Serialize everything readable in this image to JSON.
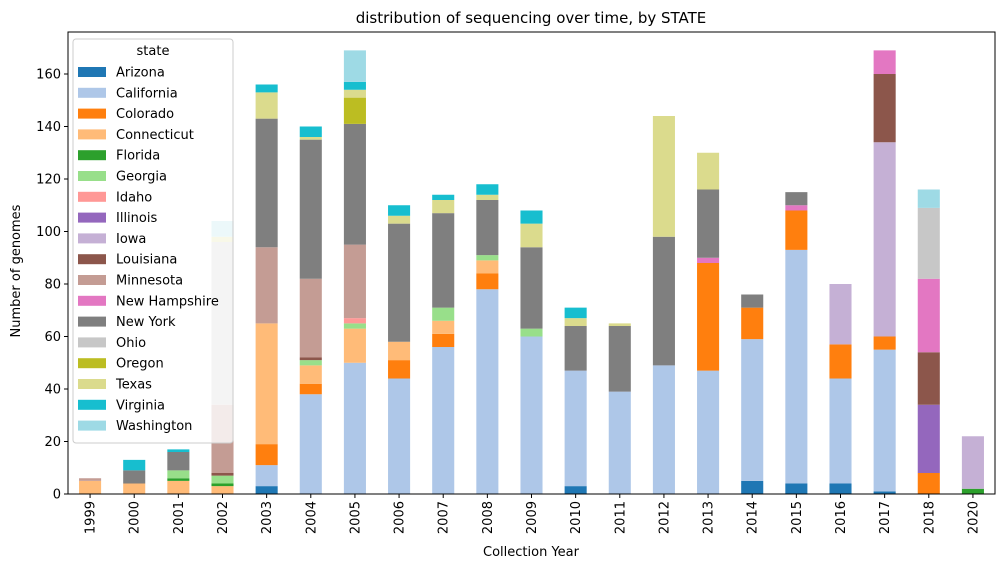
{
  "chart_data": {
    "type": "bar",
    "stacked": true,
    "title": "distribution of sequencing over time, by STATE",
    "xlabel": "Collection Year",
    "ylabel": "Number of genomes",
    "ylim": [
      0,
      176
    ],
    "yticks": [
      0,
      20,
      40,
      60,
      80,
      100,
      120,
      140,
      160
    ],
    "grid": false,
    "legend": {
      "title": "state",
      "placement": "top-left"
    },
    "categories": [
      "1999",
      "2000",
      "2001",
      "2002",
      "2003",
      "2004",
      "2005",
      "2006",
      "2007",
      "2008",
      "2009",
      "2010",
      "2011",
      "2012",
      "2013",
      "2014",
      "2015",
      "2016",
      "2017",
      "2018",
      "2020"
    ],
    "series": [
      {
        "name": "Arizona",
        "color": "#1f77b4",
        "values": [
          0,
          0,
          0,
          0,
          3,
          0,
          0,
          0,
          0,
          0,
          0,
          3,
          0,
          0,
          0,
          5,
          4,
          4,
          1,
          0,
          0
        ]
      },
      {
        "name": "California",
        "color": "#aec7e8",
        "values": [
          0,
          0,
          0,
          0,
          8,
          38,
          50,
          44,
          56,
          78,
          60,
          44,
          39,
          49,
          47,
          54,
          89,
          40,
          54,
          0,
          0
        ]
      },
      {
        "name": "Colorado",
        "color": "#ff7f0e",
        "values": [
          0,
          0,
          0,
          0,
          8,
          4,
          0,
          7,
          5,
          6,
          0,
          0,
          0,
          0,
          41,
          12,
          15,
          13,
          5,
          8,
          0
        ]
      },
      {
        "name": "Connecticut",
        "color": "#ffbb78",
        "values": [
          5,
          4,
          5,
          3,
          46,
          7,
          13,
          7,
          5,
          5,
          0,
          0,
          0,
          0,
          0,
          0,
          0,
          0,
          0,
          0,
          0
        ]
      },
      {
        "name": "Florida",
        "color": "#2ca02c",
        "values": [
          0,
          0,
          1,
          1,
          0,
          0,
          0,
          0,
          0,
          0,
          0,
          0,
          0,
          0,
          0,
          0,
          0,
          0,
          0,
          0,
          2
        ]
      },
      {
        "name": "Georgia",
        "color": "#98df8a",
        "values": [
          0,
          0,
          3,
          3,
          0,
          2,
          2,
          0,
          5,
          2,
          3,
          0,
          0,
          0,
          0,
          0,
          0,
          0,
          0,
          0,
          0
        ]
      },
      {
        "name": "Idaho",
        "color": "#ff9896",
        "values": [
          0,
          0,
          0,
          0,
          0,
          0,
          2,
          0,
          0,
          0,
          0,
          0,
          0,
          0,
          0,
          0,
          0,
          0,
          0,
          0,
          0
        ]
      },
      {
        "name": "Illinois",
        "color": "#9467bd",
        "values": [
          0,
          0,
          0,
          0,
          0,
          0,
          0,
          0,
          0,
          0,
          0,
          0,
          0,
          0,
          0,
          0,
          0,
          0,
          0,
          26,
          0
        ]
      },
      {
        "name": "Iowa",
        "color": "#c5b0d5",
        "values": [
          0,
          0,
          0,
          0,
          0,
          0,
          0,
          0,
          0,
          0,
          0,
          0,
          0,
          0,
          0,
          0,
          0,
          23,
          74,
          0,
          20
        ]
      },
      {
        "name": "Louisiana",
        "color": "#8c564b",
        "values": [
          0,
          0,
          0,
          1,
          0,
          1,
          0,
          0,
          0,
          0,
          0,
          0,
          0,
          0,
          0,
          0,
          0,
          0,
          26,
          20,
          0
        ]
      },
      {
        "name": "Minnesota",
        "color": "#c49c94",
        "values": [
          1,
          0,
          0,
          26,
          29,
          30,
          28,
          0,
          0,
          0,
          0,
          0,
          0,
          0,
          0,
          0,
          0,
          0,
          0,
          0,
          0
        ]
      },
      {
        "name": "New Hampshire",
        "color": "#e377c2",
        "values": [
          0,
          0,
          0,
          0,
          0,
          0,
          0,
          0,
          0,
          0,
          0,
          0,
          0,
          0,
          2,
          0,
          2,
          0,
          9,
          28,
          0
        ]
      },
      {
        "name": "New York",
        "color": "#7f7f7f",
        "values": [
          0,
          5,
          7,
          0,
          49,
          53,
          46,
          45,
          36,
          21,
          31,
          17,
          25,
          49,
          26,
          5,
          5,
          0,
          0,
          0,
          0
        ]
      },
      {
        "name": "Ohio",
        "color": "#c7c7c7",
        "values": [
          0,
          0,
          0,
          62,
          0,
          0,
          0,
          0,
          0,
          0,
          0,
          0,
          0,
          0,
          0,
          0,
          0,
          0,
          0,
          27,
          0
        ]
      },
      {
        "name": "Oregon",
        "color": "#bcbd22",
        "values": [
          0,
          0,
          0,
          0,
          0,
          0,
          10,
          0,
          0,
          0,
          0,
          0,
          0,
          0,
          0,
          0,
          0,
          0,
          0,
          0,
          0
        ]
      },
      {
        "name": "Texas",
        "color": "#dbdb8d",
        "values": [
          0,
          0,
          0,
          2,
          10,
          1,
          3,
          3,
          5,
          2,
          9,
          3,
          1,
          46,
          14,
          0,
          0,
          0,
          0,
          0,
          0
        ]
      },
      {
        "name": "Virginia",
        "color": "#17becf",
        "values": [
          0,
          4,
          1,
          0,
          3,
          4,
          3,
          4,
          2,
          4,
          5,
          4,
          0,
          0,
          0,
          0,
          0,
          0,
          0,
          0,
          0
        ]
      },
      {
        "name": "Washington",
        "color": "#9edae5",
        "values": [
          0,
          0,
          0,
          6,
          0,
          0,
          12,
          0,
          0,
          0,
          0,
          0,
          0,
          0,
          0,
          0,
          0,
          0,
          0,
          7,
          0
        ]
      }
    ]
  }
}
